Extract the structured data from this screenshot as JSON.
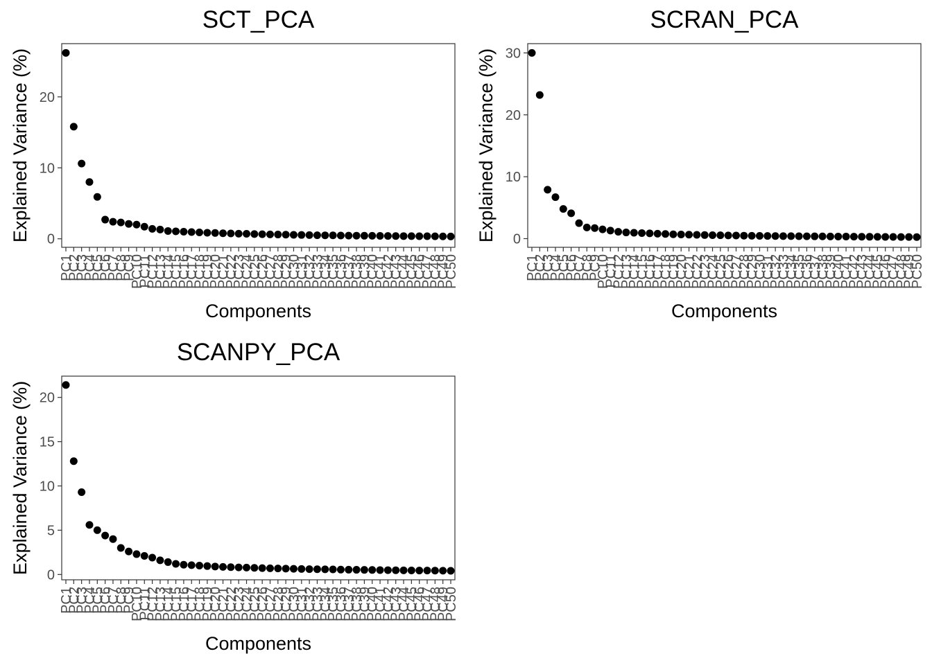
{
  "chart_data": [
    {
      "type": "scatter",
      "title": "SCT_PCA",
      "xlabel": "Components",
      "ylabel": "Explained Variance (%)",
      "categories": [
        "PC1",
        "PC2",
        "PC3",
        "PC4",
        "PC5",
        "PC6",
        "PC7",
        "PC8",
        "PC9",
        "PC10",
        "PC11",
        "PC12",
        "PC13",
        "PC14",
        "PC15",
        "PC16",
        "PC17",
        "PC18",
        "PC19",
        "PC20",
        "PC21",
        "PC22",
        "PC23",
        "PC24",
        "PC25",
        "PC26",
        "PC27",
        "PC28",
        "PC29",
        "PC30",
        "PC31",
        "PC32",
        "PC33",
        "PC34",
        "PC35",
        "PC36",
        "PC37",
        "PC38",
        "PC39",
        "PC40",
        "PC41",
        "PC42",
        "PC43",
        "PC44",
        "PC45",
        "PC46",
        "PC47",
        "PC48",
        "PC49",
        "PC50"
      ],
      "values": [
        26.2,
        15.8,
        10.6,
        8.0,
        5.9,
        2.7,
        2.4,
        2.3,
        2.1,
        2.0,
        1.7,
        1.4,
        1.3,
        1.1,
        1.05,
        1.0,
        0.95,
        0.9,
        0.85,
        0.82,
        0.78,
        0.75,
        0.72,
        0.7,
        0.67,
        0.64,
        0.62,
        0.6,
        0.58,
        0.56,
        0.54,
        0.52,
        0.5,
        0.49,
        0.48,
        0.46,
        0.45,
        0.44,
        0.43,
        0.42,
        0.41,
        0.4,
        0.39,
        0.38,
        0.37,
        0.36,
        0.36,
        0.35,
        0.34,
        0.33
      ],
      "yticks": [
        0,
        10,
        20
      ],
      "ylim": [
        -1.2,
        27.5
      ],
      "grid": false
    },
    {
      "type": "scatter",
      "title": "SCRAN_PCA",
      "xlabel": "Components",
      "ylabel": "Explained Variance (%)",
      "categories": [
        "PC1",
        "PC2",
        "PC3",
        "PC4",
        "PC5",
        "PC6",
        "PC7",
        "PC8",
        "PC9",
        "PC10",
        "PC11",
        "PC12",
        "PC13",
        "PC14",
        "PC15",
        "PC16",
        "PC17",
        "PC18",
        "PC19",
        "PC20",
        "PC21",
        "PC22",
        "PC23",
        "PC24",
        "PC25",
        "PC26",
        "PC27",
        "PC28",
        "PC29",
        "PC30",
        "PC31",
        "PC32",
        "PC33",
        "PC34",
        "PC35",
        "PC36",
        "PC37",
        "PC38",
        "PC39",
        "PC40",
        "PC41",
        "PC42",
        "PC43",
        "PC44",
        "PC45",
        "PC46",
        "PC47",
        "PC48",
        "PC49",
        "PC50"
      ],
      "values": [
        30.0,
        23.2,
        7.9,
        6.7,
        4.8,
        4.1,
        2.5,
        1.8,
        1.7,
        1.5,
        1.3,
        1.1,
        1.0,
        0.95,
        0.9,
        0.85,
        0.8,
        0.75,
        0.7,
        0.67,
        0.64,
        0.61,
        0.58,
        0.56,
        0.54,
        0.52,
        0.5,
        0.48,
        0.46,
        0.45,
        0.43,
        0.42,
        0.41,
        0.4,
        0.39,
        0.38,
        0.37,
        0.36,
        0.35,
        0.34,
        0.33,
        0.32,
        0.31,
        0.3,
        0.29,
        0.28,
        0.28,
        0.27,
        0.26,
        0.25
      ],
      "yticks": [
        0,
        10,
        20,
        30
      ],
      "ylim": [
        -1.4,
        31.5
      ],
      "grid": false
    },
    {
      "type": "scatter",
      "title": "SCANPY_PCA",
      "xlabel": "Components",
      "ylabel": "Explained Variance (%)",
      "categories": [
        "PC1",
        "PC2",
        "PC3",
        "PC4",
        "PC5",
        "PC6",
        "PC7",
        "PC8",
        "PC9",
        "PC10",
        "PC11",
        "PC12",
        "PC13",
        "PC14",
        "PC15",
        "PC16",
        "PC17",
        "PC18",
        "PC19",
        "PC20",
        "PC21",
        "PC22",
        "PC23",
        "PC24",
        "PC25",
        "PC26",
        "PC27",
        "PC28",
        "PC29",
        "PC30",
        "PC31",
        "PC32",
        "PC33",
        "PC34",
        "PC35",
        "PC36",
        "PC37",
        "PC38",
        "PC39",
        "PC40",
        "PC41",
        "PC42",
        "PC43",
        "PC44",
        "PC45",
        "PC46",
        "PC47",
        "PC48",
        "PC49",
        "PC50"
      ],
      "values": [
        21.4,
        12.8,
        9.3,
        5.6,
        5.0,
        4.4,
        4.0,
        3.0,
        2.6,
        2.3,
        2.1,
        1.9,
        1.6,
        1.4,
        1.2,
        1.1,
        1.05,
        1.0,
        0.95,
        0.9,
        0.86,
        0.83,
        0.8,
        0.78,
        0.75,
        0.72,
        0.7,
        0.68,
        0.66,
        0.64,
        0.62,
        0.6,
        0.59,
        0.58,
        0.57,
        0.55,
        0.54,
        0.53,
        0.52,
        0.51,
        0.5,
        0.49,
        0.48,
        0.47,
        0.46,
        0.45,
        0.45,
        0.44,
        0.43,
        0.42
      ],
      "yticks": [
        0,
        5,
        10,
        15,
        20
      ],
      "ylim": [
        -0.6,
        22.4
      ],
      "grid": false
    }
  ]
}
